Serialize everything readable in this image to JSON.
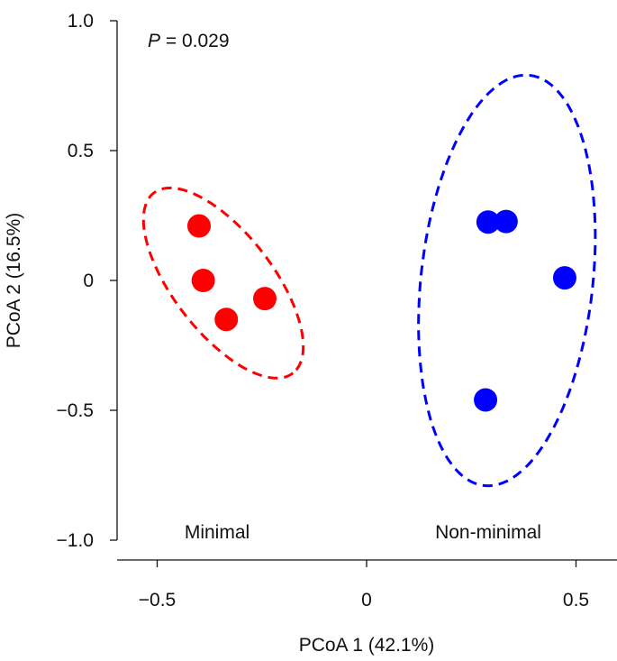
{
  "chart_data": {
    "type": "scatter",
    "xlabel": "PCoA 1 (42.1%)",
    "ylabel": "PCoA 2 (16.5%)",
    "xlim": [
      -0.6,
      0.6
    ],
    "ylim": [
      -1.07,
      1.03
    ],
    "xticks": [
      -0.5,
      0,
      0.5
    ],
    "xtick_labels": [
      "−0.5",
      "0",
      "0.5"
    ],
    "yticks": [
      1.0,
      0.5,
      0,
      -0.5,
      -1.0
    ],
    "ytick_labels": [
      "1.0",
      "0.5",
      "0",
      "−0.5",
      "−1.0"
    ],
    "grid": false,
    "annotation": {
      "italic": "P",
      "text": " = 0.029"
    },
    "series": [
      {
        "label": "Minimal",
        "color": "#ff0000",
        "points": [
          [
            -0.4,
            0.21
          ],
          [
            -0.39,
            0.0
          ],
          [
            -0.335,
            -0.15
          ],
          [
            -0.243,
            -0.07
          ]
        ],
        "ellipse": {
          "center": [
            -0.342,
            -0.01
          ],
          "major_half": [
            0.166,
            -0.347
          ],
          "minor_half": [
            -0.094,
            -0.117
          ]
        }
      },
      {
        "label": "Non-minimal",
        "color": "#0000ff",
        "points": [
          [
            0.29,
            0.225
          ],
          [
            0.333,
            0.227
          ],
          [
            0.473,
            0.01
          ],
          [
            0.284,
            -0.46
          ]
        ],
        "ellipse": {
          "center": [
            0.335,
            0.0
          ],
          "major_half": [
            0.054,
            0.79
          ],
          "minor_half": [
            0.204,
            -0.035
          ]
        }
      }
    ]
  }
}
